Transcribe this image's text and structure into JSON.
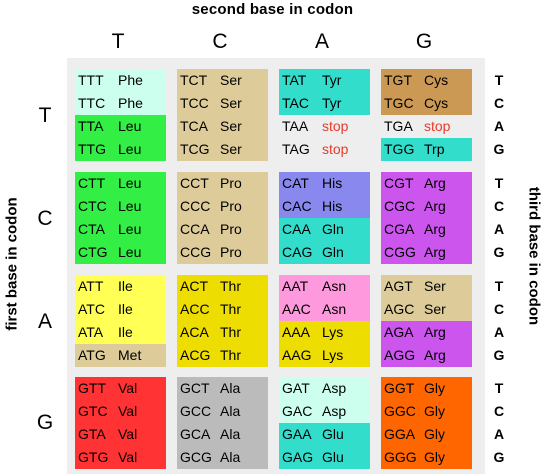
{
  "title": "second base in codon",
  "left_label": "first base in codon",
  "right_label": "third base in codon",
  "columns": [
    "T",
    "C",
    "A",
    "G"
  ],
  "rows": [
    "T",
    "C",
    "A",
    "G"
  ],
  "third_bases": [
    "T",
    "C",
    "A",
    "G"
  ],
  "colors": {
    "Phe": "#ccffee",
    "Leu": "#33ee44",
    "Ser": "#ddcc99",
    "Tyr": "#33ddcc",
    "stop": "#eeeeee",
    "Cys": "#cc9955",
    "Trp": "#33ddcc",
    "Pro": "#ddcc99",
    "His": "#8888ee",
    "Gln": "#33ddcc",
    "Arg": "#cc55ee",
    "Ile": "#ffff55",
    "Met": "#ddcc99",
    "Thr": "#eedd00",
    "Asn": "#ff99dd",
    "Lys": "#eedd00",
    "Val": "#ff3333",
    "Ala": "#bbbbbb",
    "Asp": "#ccffee",
    "Glu": "#33ddcc",
    "Gly": "#ff6600"
  },
  "blocks": [
    [
      [
        [
          "TTT",
          "Phe"
        ],
        [
          "TTC",
          "Phe"
        ],
        [
          "TTA",
          "Leu"
        ],
        [
          "TTG",
          "Leu"
        ]
      ],
      [
        [
          "TCT",
          "Ser"
        ],
        [
          "TCC",
          "Ser"
        ],
        [
          "TCA",
          "Ser"
        ],
        [
          "TCG",
          "Ser"
        ]
      ],
      [
        [
          "TAT",
          "Tyr"
        ],
        [
          "TAC",
          "Tyr"
        ],
        [
          "TAA",
          "stop"
        ],
        [
          "TAG",
          "stop"
        ]
      ],
      [
        [
          "TGT",
          "Cys"
        ],
        [
          "TGC",
          "Cys"
        ],
        [
          "TGA",
          "stop"
        ],
        [
          "TGG",
          "Trp"
        ]
      ]
    ],
    [
      [
        [
          "CTT",
          "Leu"
        ],
        [
          "CTC",
          "Leu"
        ],
        [
          "CTA",
          "Leu"
        ],
        [
          "CTG",
          "Leu"
        ]
      ],
      [
        [
          "CCT",
          "Pro"
        ],
        [
          "CCC",
          "Pro"
        ],
        [
          "CCA",
          "Pro"
        ],
        [
          "CCG",
          "Pro"
        ]
      ],
      [
        [
          "CAT",
          "His"
        ],
        [
          "CAC",
          "His"
        ],
        [
          "CAA",
          "Gln"
        ],
        [
          "CAG",
          "Gln"
        ]
      ],
      [
        [
          "CGT",
          "Arg"
        ],
        [
          "CGC",
          "Arg"
        ],
        [
          "CGA",
          "Arg"
        ],
        [
          "CGG",
          "Arg"
        ]
      ]
    ],
    [
      [
        [
          "ATT",
          "Ile"
        ],
        [
          "ATC",
          "Ile"
        ],
        [
          "ATA",
          "Ile"
        ],
        [
          "ATG",
          "Met"
        ]
      ],
      [
        [
          "ACT",
          "Thr"
        ],
        [
          "ACC",
          "Thr"
        ],
        [
          "ACA",
          "Thr"
        ],
        [
          "ACG",
          "Thr"
        ]
      ],
      [
        [
          "AAT",
          "Asn"
        ],
        [
          "AAC",
          "Asn"
        ],
        [
          "AAA",
          "Lys"
        ],
        [
          "AAG",
          "Lys"
        ]
      ],
      [
        [
          "AGT",
          "Ser"
        ],
        [
          "AGC",
          "Ser"
        ],
        [
          "AGA",
          "Arg"
        ],
        [
          "AGG",
          "Arg"
        ]
      ]
    ],
    [
      [
        [
          "GTT",
          "Val"
        ],
        [
          "GTC",
          "Val"
        ],
        [
          "GTA",
          "Val"
        ],
        [
          "GTG",
          "Val"
        ]
      ],
      [
        [
          "GCT",
          "Ala"
        ],
        [
          "GCC",
          "Ala"
        ],
        [
          "GCA",
          "Ala"
        ],
        [
          "GCG",
          "Ala"
        ]
      ],
      [
        [
          "GAT",
          "Asp"
        ],
        [
          "GAC",
          "Asp"
        ],
        [
          "GAA",
          "Glu"
        ],
        [
          "GAG",
          "Glu"
        ]
      ],
      [
        [
          "GGT",
          "Gly"
        ],
        [
          "GGC",
          "Gly"
        ],
        [
          "GGA",
          "Gly"
        ],
        [
          "GGG",
          "Gly"
        ]
      ]
    ]
  ]
}
